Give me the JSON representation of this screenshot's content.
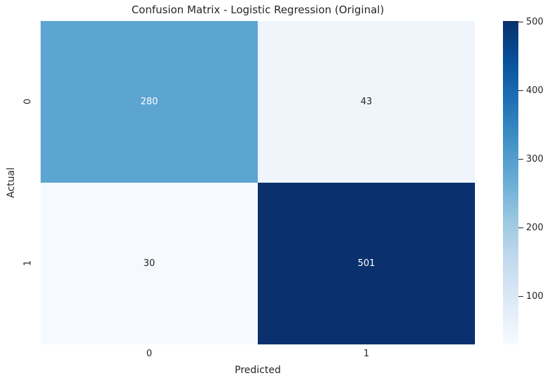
{
  "chart_data": {
    "type": "heatmap",
    "title": "Confusion Matrix - Logistic Regression (Original)",
    "xlabel": "Predicted",
    "ylabel": "Actual",
    "x_ticklabels": [
      "0",
      "1"
    ],
    "y_ticklabels": [
      "0",
      "1"
    ],
    "matrix": [
      [
        280,
        43
      ],
      [
        30,
        501
      ]
    ],
    "cells": [
      {
        "actual": "0",
        "predicted": "0",
        "value": "280",
        "bg": "#5da5d1",
        "fg": "#ffffff"
      },
      {
        "actual": "0",
        "predicted": "1",
        "value": "43",
        "bg": "#f0f5fc",
        "fg": "#262626"
      },
      {
        "actual": "1",
        "predicted": "0",
        "value": "30",
        "bg": "#f6fafe",
        "fg": "#262626"
      },
      {
        "actual": "1",
        "predicted": "1",
        "value": "501",
        "bg": "#0a316e",
        "fg": "#ffffff"
      }
    ],
    "colorbar": {
      "orientation": "vertical",
      "position": "right",
      "vmin": 30,
      "vmax": 501,
      "tick_labels": [
        "500",
        "400",
        "300",
        "200",
        "100"
      ],
      "colormap": "Blues",
      "color_min": "#f7fbff",
      "color_max": "#08306b"
    },
    "colors": {
      "background": "#ffffff",
      "text": "#262626",
      "annotation_light": "#ffffff",
      "annotation_dark": "#262626"
    },
    "grid": false,
    "legend": false
  }
}
